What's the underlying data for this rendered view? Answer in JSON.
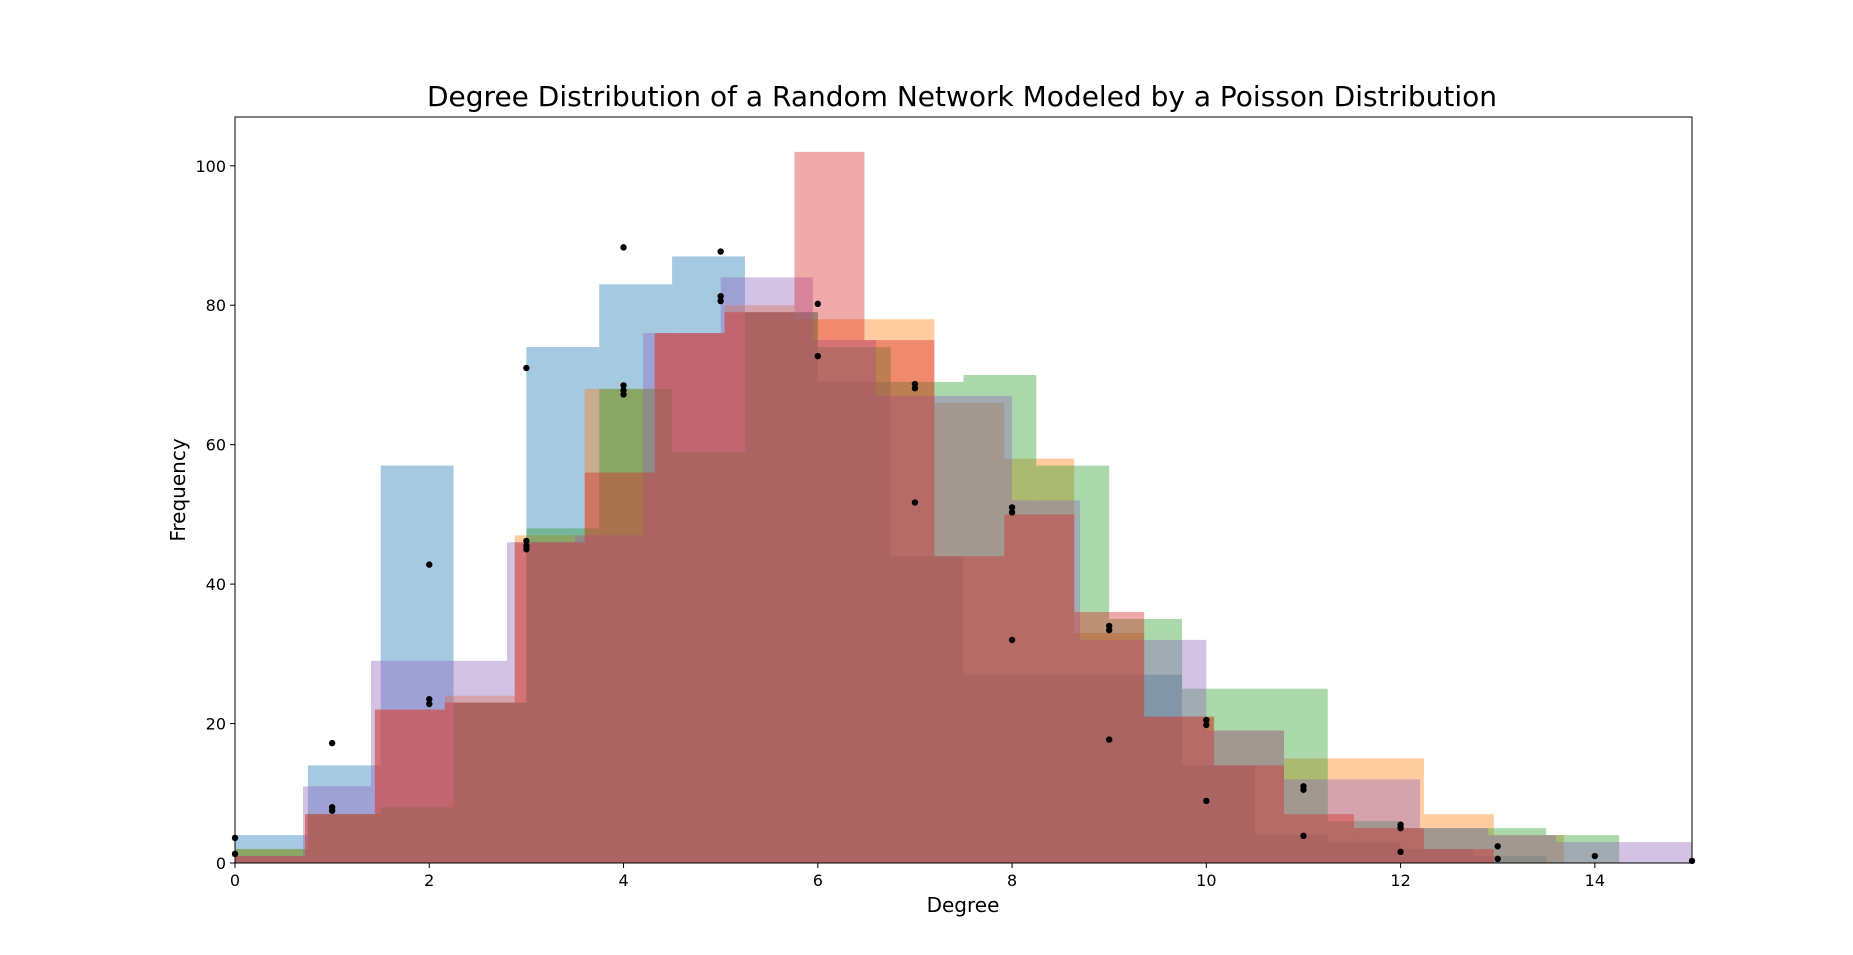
{
  "chart_data": {
    "type": "bar",
    "title": "Degree Distribution of a Random Network Modeled by a Poisson Distribution",
    "xlabel": "Degree",
    "ylabel": "Frequency",
    "xlim": [
      0,
      15
    ],
    "ylim": [
      0,
      107
    ],
    "xticks": [
      0,
      2,
      4,
      6,
      8,
      10,
      12,
      14
    ],
    "yticks": [
      0,
      20,
      40,
      60,
      80,
      100
    ],
    "grid": false,
    "legend": "none",
    "series": [
      {
        "color": "#1f77b4",
        "alpha": 0.4,
        "bins": [
          {
            "x0": 0,
            "x1": 0.75,
            "y": 4
          },
          {
            "x0": 0.75,
            "x1": 1.5,
            "y": 14
          },
          {
            "x0": 1.5,
            "x1": 2.25,
            "y": 57
          },
          {
            "x0": 2.25,
            "x1": 3.0,
            "y": 23
          },
          {
            "x0": 3.0,
            "x1": 3.75,
            "y": 74
          },
          {
            "x0": 3.75,
            "x1": 4.5,
            "y": 83
          },
          {
            "x0": 4.5,
            "x1": 5.25,
            "y": 87
          },
          {
            "x0": 5.25,
            "x1": 6.0,
            "y": 79
          },
          {
            "x0": 6.0,
            "x1": 6.75,
            "y": 69
          },
          {
            "x0": 6.75,
            "x1": 7.5,
            "y": 44
          },
          {
            "x0": 7.5,
            "x1": 8.25,
            "y": 27
          },
          {
            "x0": 8.25,
            "x1": 9.0,
            "y": 27
          },
          {
            "x0": 9.0,
            "x1": 9.75,
            "y": 27
          },
          {
            "x0": 9.75,
            "x1": 10.5,
            "y": 14
          },
          {
            "x0": 10.5,
            "x1": 11.25,
            "y": 4
          },
          {
            "x0": 11.25,
            "x1": 12.0,
            "y": 3
          },
          {
            "x0": 12.0,
            "x1": 12.75,
            "y": 2
          },
          {
            "x0": 12.75,
            "x1": 13.5,
            "y": 1
          }
        ]
      },
      {
        "color": "#ff7f0e",
        "alpha": 0.4,
        "bins": [
          {
            "x0": 0,
            "x1": 0.72,
            "y": 2
          },
          {
            "x0": 0.72,
            "x1": 1.44,
            "y": 7
          },
          {
            "x0": 1.44,
            "x1": 2.16,
            "y": 22
          },
          {
            "x0": 2.16,
            "x1": 2.88,
            "y": 24
          },
          {
            "x0": 2.88,
            "x1": 3.6,
            "y": 47
          },
          {
            "x0": 3.6,
            "x1": 4.32,
            "y": 68
          },
          {
            "x0": 4.32,
            "x1": 5.04,
            "y": 76
          },
          {
            "x0": 5.04,
            "x1": 5.76,
            "y": 80
          },
          {
            "x0": 5.76,
            "x1": 6.48,
            "y": 78
          },
          {
            "x0": 6.48,
            "x1": 7.2,
            "y": 78
          },
          {
            "x0": 7.2,
            "x1": 7.92,
            "y": 66
          },
          {
            "x0": 7.92,
            "x1": 8.64,
            "y": 58
          },
          {
            "x0": 8.64,
            "x1": 9.36,
            "y": 33
          },
          {
            "x0": 9.36,
            "x1": 10.08,
            "y": 21
          },
          {
            "x0": 10.08,
            "x1": 10.8,
            "y": 19
          },
          {
            "x0": 10.8,
            "x1": 11.52,
            "y": 15
          },
          {
            "x0": 11.52,
            "x1": 12.24,
            "y": 15
          },
          {
            "x0": 12.24,
            "x1": 12.96,
            "y": 7
          },
          {
            "x0": 12.96,
            "x1": 13.68,
            "y": 4
          }
        ]
      },
      {
        "color": "#2ca02c",
        "alpha": 0.4,
        "bins": [
          {
            "x0": 0,
            "x1": 0.75,
            "y": 2
          },
          {
            "x0": 0.75,
            "x1": 1.5,
            "y": 7
          },
          {
            "x0": 1.5,
            "x1": 2.25,
            "y": 8
          },
          {
            "x0": 2.25,
            "x1": 3.0,
            "y": 23
          },
          {
            "x0": 3.0,
            "x1": 3.75,
            "y": 48
          },
          {
            "x0": 3.75,
            "x1": 4.5,
            "y": 68
          },
          {
            "x0": 4.5,
            "x1": 5.25,
            "y": 59
          },
          {
            "x0": 5.25,
            "x1": 6.0,
            "y": 79
          },
          {
            "x0": 6.0,
            "x1": 6.75,
            "y": 74
          },
          {
            "x0": 6.75,
            "x1": 7.5,
            "y": 69
          },
          {
            "x0": 7.5,
            "x1": 8.25,
            "y": 70
          },
          {
            "x0": 8.25,
            "x1": 9.0,
            "y": 57
          },
          {
            "x0": 9.0,
            "x1": 9.75,
            "y": 35
          },
          {
            "x0": 9.75,
            "x1": 10.5,
            "y": 25
          },
          {
            "x0": 10.5,
            "x1": 11.25,
            "y": 25
          },
          {
            "x0": 11.25,
            "x1": 12.0,
            "y": 6
          },
          {
            "x0": 12.0,
            "x1": 12.75,
            "y": 5
          },
          {
            "x0": 12.75,
            "x1": 13.5,
            "y": 5
          },
          {
            "x0": 13.5,
            "x1": 14.25,
            "y": 4
          }
        ]
      },
      {
        "color": "#9467bd",
        "alpha": 0.4,
        "bins": [
          {
            "x0": 0,
            "x1": 0.7,
            "y": 1
          },
          {
            "x0": 0.7,
            "x1": 1.4,
            "y": 11
          },
          {
            "x0": 1.4,
            "x1": 2.1,
            "y": 29
          },
          {
            "x0": 2.1,
            "x1": 2.8,
            "y": 29
          },
          {
            "x0": 2.8,
            "x1": 3.5,
            "y": 46
          },
          {
            "x0": 3.5,
            "x1": 4.2,
            "y": 47
          },
          {
            "x0": 4.2,
            "x1": 5.0,
            "y": 76
          },
          {
            "x0": 5.0,
            "x1": 5.95,
            "y": 84
          },
          {
            "x0": 5.95,
            "x1": 6.6,
            "y": 75
          },
          {
            "x0": 6.6,
            "x1": 7.3,
            "y": 67
          },
          {
            "x0": 7.3,
            "x1": 8.0,
            "y": 67
          },
          {
            "x0": 8.0,
            "x1": 8.7,
            "y": 52
          },
          {
            "x0": 8.7,
            "x1": 9.4,
            "y": 32
          },
          {
            "x0": 9.4,
            "x1": 10.0,
            "y": 32
          },
          {
            "x0": 10.0,
            "x1": 10.8,
            "y": 19
          },
          {
            "x0": 10.8,
            "x1": 11.5,
            "y": 12
          },
          {
            "x0": 11.5,
            "x1": 12.2,
            "y": 12
          },
          {
            "x0": 12.2,
            "x1": 12.9,
            "y": 5
          },
          {
            "x0": 12.9,
            "x1": 13.6,
            "y": 4
          },
          {
            "x0": 13.6,
            "x1": 14.3,
            "y": 3
          },
          {
            "x0": 14.3,
            "x1": 15.0,
            "y": 3
          }
        ]
      },
      {
        "color": "#d62728",
        "alpha": 0.4,
        "bins": [
          {
            "x0": 0,
            "x1": 0.72,
            "y": 1
          },
          {
            "x0": 0.72,
            "x1": 1.44,
            "y": 7
          },
          {
            "x0": 1.44,
            "x1": 2.16,
            "y": 22
          },
          {
            "x0": 2.16,
            "x1": 2.88,
            "y": 23
          },
          {
            "x0": 2.88,
            "x1": 3.6,
            "y": 46
          },
          {
            "x0": 3.6,
            "x1": 4.32,
            "y": 56
          },
          {
            "x0": 4.32,
            "x1": 5.04,
            "y": 76
          },
          {
            "x0": 5.04,
            "x1": 5.76,
            "y": 79
          },
          {
            "x0": 5.76,
            "x1": 6.48,
            "y": 102
          },
          {
            "x0": 6.48,
            "x1": 7.2,
            "y": 75
          },
          {
            "x0": 7.2,
            "x1": 7.92,
            "y": 44
          },
          {
            "x0": 7.92,
            "x1": 8.64,
            "y": 50
          },
          {
            "x0": 8.64,
            "x1": 9.36,
            "y": 36
          },
          {
            "x0": 9.36,
            "x1": 10.08,
            "y": 21
          },
          {
            "x0": 10.08,
            "x1": 10.8,
            "y": 14
          },
          {
            "x0": 10.8,
            "x1": 11.52,
            "y": 7
          },
          {
            "x0": 11.52,
            "x1": 12.24,
            "y": 5
          },
          {
            "x0": 12.24,
            "x1": 12.96,
            "y": 2
          }
        ]
      }
    ],
    "points": [
      {
        "x": 0,
        "y": 3.6
      },
      {
        "x": 0,
        "y": 1.3
      },
      {
        "x": 1,
        "y": 17.2
      },
      {
        "x": 1,
        "y": 8.0
      },
      {
        "x": 1,
        "y": 7.5
      },
      {
        "x": 2,
        "y": 42.8
      },
      {
        "x": 2,
        "y": 23.5
      },
      {
        "x": 2,
        "y": 22.8
      },
      {
        "x": 3,
        "y": 71.0
      },
      {
        "x": 3,
        "y": 46.2
      },
      {
        "x": 3,
        "y": 45.5
      },
      {
        "x": 3,
        "y": 45.0
      },
      {
        "x": 4,
        "y": 88.3
      },
      {
        "x": 4,
        "y": 68.5
      },
      {
        "x": 4,
        "y": 67.8
      },
      {
        "x": 4,
        "y": 67.2
      },
      {
        "x": 5,
        "y": 87.7
      },
      {
        "x": 5,
        "y": 81.3
      },
      {
        "x": 5,
        "y": 80.6
      },
      {
        "x": 6,
        "y": 80.2
      },
      {
        "x": 6,
        "y": 72.7
      },
      {
        "x": 7,
        "y": 68.7
      },
      {
        "x": 7,
        "y": 68.1
      },
      {
        "x": 7,
        "y": 51.7
      },
      {
        "x": 8,
        "y": 51.0
      },
      {
        "x": 8,
        "y": 50.3
      },
      {
        "x": 8,
        "y": 32.0
      },
      {
        "x": 9,
        "y": 34.0
      },
      {
        "x": 9,
        "y": 33.4
      },
      {
        "x": 9,
        "y": 17.7
      },
      {
        "x": 10,
        "y": 20.5
      },
      {
        "x": 10,
        "y": 19.8
      },
      {
        "x": 10,
        "y": 8.9
      },
      {
        "x": 11,
        "y": 11.0
      },
      {
        "x": 11,
        "y": 10.5
      },
      {
        "x": 11,
        "y": 3.9
      },
      {
        "x": 12,
        "y": 5.5
      },
      {
        "x": 12,
        "y": 5.0
      },
      {
        "x": 12,
        "y": 1.6
      },
      {
        "x": 13,
        "y": 2.4
      },
      {
        "x": 13,
        "y": 0.6
      },
      {
        "x": 14,
        "y": 1.0
      },
      {
        "x": 15,
        "y": 0.3
      }
    ],
    "point_color": "#000000"
  }
}
